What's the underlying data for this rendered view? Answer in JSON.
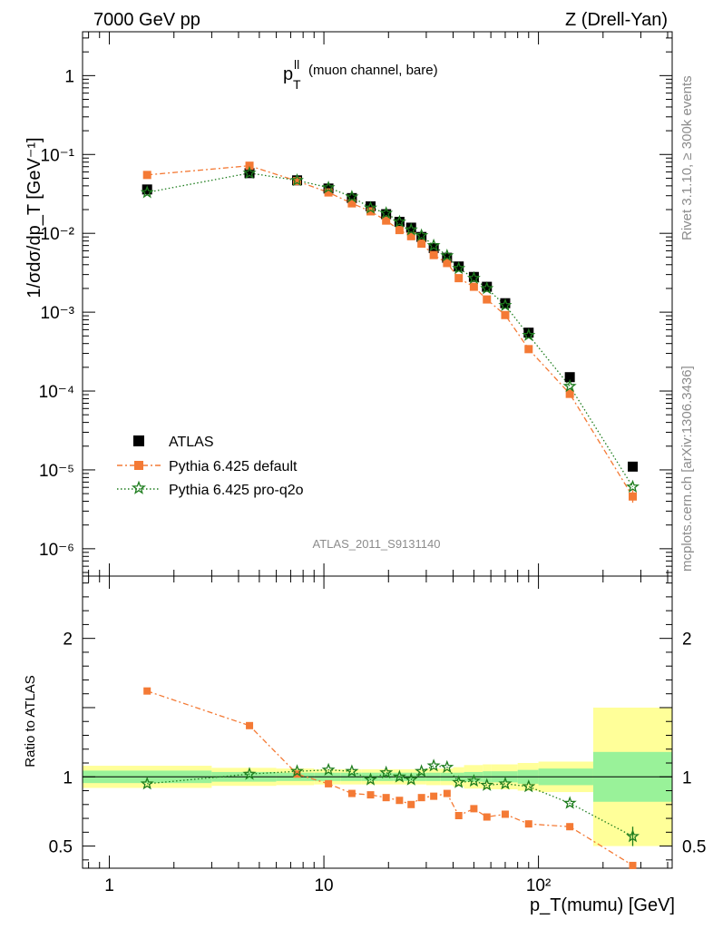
{
  "header": {
    "left": "7000 GeV pp",
    "right": "Z (Drell-Yan)"
  },
  "side": {
    "rivet": "Rivet 3.1.10, ≥ 300k events",
    "mcplots": "mcplots.cern.ch [arXiv:1306.3436]"
  },
  "plot_title": {
    "main": "p",
    "sup": "ll",
    "sub": "T",
    "rest": "(muon channel, bare)"
  },
  "analysis_id": "ATLAS_2011_S9131140",
  "legend": {
    "items": [
      "ATLAS",
      "Pythia 6.425 default",
      "Pythia 6.425 pro-q2o"
    ]
  },
  "colors": {
    "data": "#000000",
    "default": "#f47a35",
    "proq2o": "#1e7d1e",
    "band_inner": "#99f299",
    "band_outer": "#ffff99"
  },
  "chart_data": [
    {
      "type": "scatter",
      "log_x": true,
      "log_y": true,
      "xlim": [
        0.75,
        420
      ],
      "ylim": [
        4.5e-07,
        3.6
      ],
      "ylabel": "1/σdσ/dp_T [GeV⁻¹]",
      "y_ticks": [
        {
          "v": 1,
          "label": "1"
        },
        {
          "v": 0.1,
          "label": "10⁻¹"
        },
        {
          "v": 0.01,
          "label": "10⁻²"
        },
        {
          "v": 0.001,
          "label": "10⁻³"
        },
        {
          "v": 0.0001,
          "label": "10⁻⁴"
        },
        {
          "v": 1e-05,
          "label": "10⁻⁵"
        },
        {
          "v": 1e-06,
          "label": "10⁻⁶"
        }
      ],
      "x": [
        1.5,
        4.5,
        7.5,
        10.5,
        13.5,
        16.5,
        19.5,
        22.5,
        25.5,
        28.5,
        32.5,
        37.5,
        42.5,
        50,
        57.5,
        70,
        90,
        140,
        275
      ],
      "series": [
        {
          "name": "ATLAS",
          "values": [
            0.036,
            0.058,
            0.047,
            0.037,
            0.028,
            0.022,
            0.0175,
            0.014,
            0.0118,
            0.009,
            0.0065,
            0.0049,
            0.0038,
            0.0028,
            0.0021,
            0.0013,
            0.00055,
            0.00015,
            1.1e-05
          ]
        },
        {
          "name": "Pythia 6.425 default",
          "values": [
            0.055,
            0.072,
            0.046,
            0.033,
            0.024,
            0.019,
            0.0145,
            0.011,
            0.0092,
            0.0074,
            0.0053,
            0.0042,
            0.0027,
            0.0021,
            0.00145,
            0.00092,
            0.00034,
            9.2e-05,
            4.6e-06
          ]
        },
        {
          "name": "Pythia 6.425 pro-q2o",
          "values": [
            0.033,
            0.058,
            0.047,
            0.038,
            0.029,
            0.021,
            0.018,
            0.014,
            0.0111,
            0.0094,
            0.007,
            0.0052,
            0.0036,
            0.0027,
            0.002,
            0.00122,
            0.00051,
            0.000115,
            6.1e-06
          ]
        }
      ]
    },
    {
      "type": "scatter",
      "log_x": true,
      "xlim": [
        0.75,
        420
      ],
      "ylim": [
        0.34,
        2.45
      ],
      "xlabel": "p_T(mumu) [GeV]",
      "ylabel": "Ratio to ATLAS",
      "x_ticks": [
        {
          "v": 1,
          "label": "1"
        },
        {
          "v": 10,
          "label": "10"
        },
        {
          "v": 100,
          "label": "10²"
        }
      ],
      "y_ticks": [
        {
          "v": 0.5,
          "label": "0.5"
        },
        {
          "v": 1,
          "label": "1"
        },
        {
          "v": 2,
          "label": "2"
        }
      ],
      "reference_line": 1,
      "bins": [
        0.75,
        3,
        6,
        9,
        12,
        15,
        18,
        21,
        24,
        27,
        30,
        35,
        40,
        45,
        55,
        60,
        80,
        100,
        180,
        420
      ],
      "band_inner": [
        0.045,
        0.035,
        0.03,
        0.03,
        0.03,
        0.03,
        0.03,
        0.03,
        0.03,
        0.03,
        0.03,
        0.03,
        0.03,
        0.035,
        0.04,
        0.04,
        0.05,
        0.06,
        0.18
      ],
      "band_outer": [
        0.08,
        0.065,
        0.06,
        0.055,
        0.055,
        0.055,
        0.055,
        0.055,
        0.055,
        0.055,
        0.06,
        0.06,
        0.07,
        0.085,
        0.09,
        0.09,
        0.1,
        0.11,
        0.5
      ],
      "x": [
        1.5,
        4.5,
        7.5,
        10.5,
        13.5,
        16.5,
        19.5,
        22.5,
        25.5,
        28.5,
        32.5,
        37.5,
        42.5,
        50,
        57.5,
        70,
        90,
        140,
        275
      ],
      "series": [
        {
          "name": "Pythia 6.425 default",
          "values": [
            1.62,
            1.37,
            1.02,
            0.95,
            0.88,
            0.87,
            0.85,
            0.83,
            0.8,
            0.85,
            0.86,
            0.88,
            0.72,
            0.77,
            0.71,
            0.73,
            0.66,
            0.64,
            0.36
          ]
        },
        {
          "name": "Pythia 6.425 pro-q2o",
          "values": [
            0.95,
            1.02,
            1.04,
            1.05,
            1.04,
            0.98,
            1.03,
            1.0,
            0.98,
            1.04,
            1.08,
            1.07,
            0.96,
            0.97,
            0.94,
            0.95,
            0.93,
            0.81,
            0.57
          ]
        }
      ]
    }
  ]
}
